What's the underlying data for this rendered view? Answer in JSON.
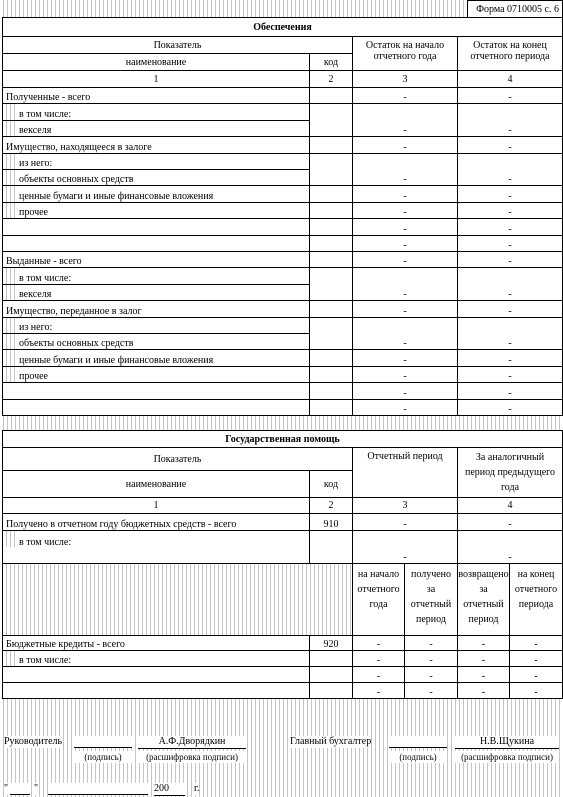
{
  "form_label": "Форма 0710005 с. 6",
  "collateral": {
    "title": "Обеспечения",
    "header": {
      "indicator": "Показатель",
      "name": "наименование",
      "code": "код",
      "start": "Остаток на начало отчетного года",
      "end": "Остаток на конец отчетного периода",
      "numbers": [
        "1",
        "2",
        "3",
        "4"
      ]
    },
    "rows": [
      {
        "name": "Полученные - всего",
        "start": "-",
        "end": "-"
      },
      {
        "name": "в том числе:",
        "indent": true
      },
      {
        "name": "векселя",
        "indent": true,
        "joined": true,
        "start": "-",
        "end": "-"
      },
      {
        "name": "Имущество, находящееся в залоге",
        "start": "-",
        "end": "-"
      },
      {
        "name": "из него:",
        "indent": true
      },
      {
        "name": "объекты основных средств",
        "indent": true,
        "joined": true,
        "start": "-",
        "end": "-"
      },
      {
        "name": "ценные бумаги и иные финансовые вложения",
        "indent": true,
        "start": "-",
        "end": "-"
      },
      {
        "name": "прочее",
        "indent": true,
        "start": "-",
        "end": "-"
      },
      {
        "start": "-",
        "end": "-"
      },
      {
        "start": "-",
        "end": "-"
      },
      {
        "name": "Выданные - всего",
        "start": "-",
        "end": "-"
      },
      {
        "name": "в том числе:",
        "indent": true
      },
      {
        "name": "векселя",
        "indent": true,
        "joined": true,
        "start": "-",
        "end": "-"
      },
      {
        "name": "Имущество, переданное в залог",
        "start": "-",
        "end": "-"
      },
      {
        "name": "из него:",
        "indent": true
      },
      {
        "name": "объекты основных средств",
        "indent": true,
        "joined": true,
        "start": "-",
        "end": "-"
      },
      {
        "name": "ценные бумаги и иные финансовые вложения",
        "indent": true,
        "start": "-",
        "end": "-"
      },
      {
        "name": "прочее",
        "indent": true,
        "start": "-",
        "end": "-"
      },
      {
        "start": "-",
        "end": "-"
      },
      {
        "start": "-",
        "end": "-"
      }
    ]
  },
  "state_aid": {
    "title": "Государственная помощь",
    "header": {
      "indicator": "Показатель",
      "name": "наименование",
      "code": "код",
      "period": "Отчетный период",
      "previous": "За аналогичный период предыдущего года",
      "numbers": [
        "1",
        "2",
        "3",
        "4"
      ]
    },
    "rows": [
      {
        "name": "Получено в отчетном году бюджетных средств - всего",
        "code": 910,
        "period": "-",
        "previous": "-"
      },
      {
        "name": "в том числе:",
        "indent": true
      },
      {
        "joined": true,
        "period": "-",
        "previous": "-"
      },
      {
        "subheads": [
          "на начало отчетного года",
          "получено за отчетный период",
          "возвращено за отчетный период",
          "на конец отчетного периода"
        ]
      },
      {
        "name": "Бюджетные кредиты - всего",
        "code": 920,
        "values": [
          "-",
          "-",
          "-",
          "-"
        ]
      },
      {
        "name": "в том числе:",
        "indent": true,
        "values": [
          "-",
          "-",
          "-",
          "-"
        ]
      },
      {
        "values": [
          "-",
          "-",
          "-",
          "-"
        ]
      },
      {
        "values": [
          "-",
          "-",
          "-",
          "-"
        ]
      }
    ]
  },
  "signatures": {
    "head_label": "Руководитель",
    "head_sign": "(подпись)",
    "head_name": "А.Ф.Дворядкин",
    "head_decode": "(расшифровка подписи)",
    "chief_label": "Главный бухгалтер",
    "chief_sign": "(подпись)",
    "chief_name": "Н.В.Щукина",
    "chief_decode": "(расшифровка подписи)",
    "quote_open": "\"",
    "quote_close": "\"",
    "year": "200",
    "year_suffix": "г."
  }
}
